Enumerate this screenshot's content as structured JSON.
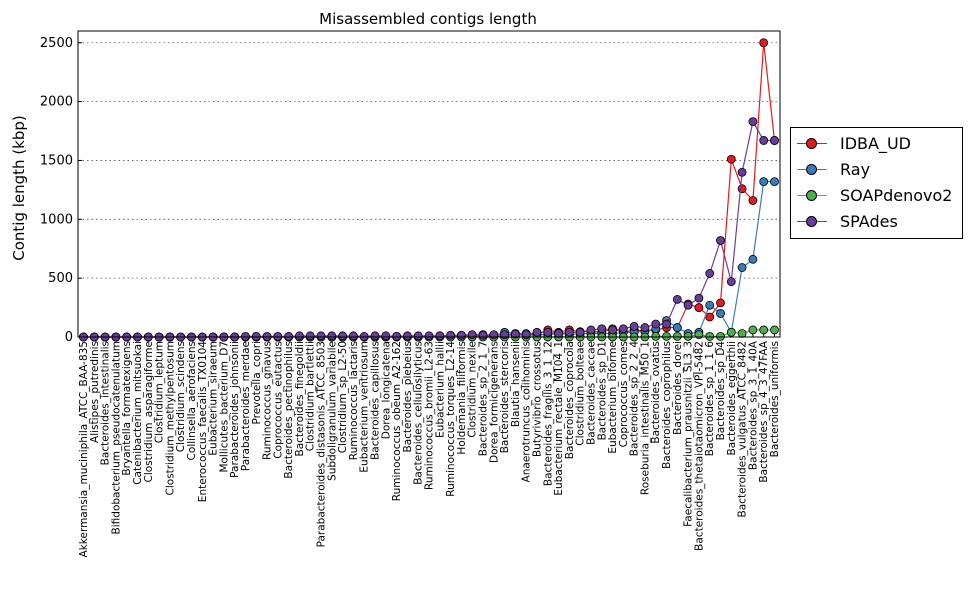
{
  "chart_data": {
    "type": "line",
    "title": "Misassembled contigs length",
    "xlabel": "",
    "ylabel": "Contig length (kbp)",
    "ylim": [
      0,
      2600
    ],
    "yticks": [
      0,
      500,
      1000,
      1500,
      2000,
      2500
    ],
    "grid": "horizontal dotted",
    "legend_position": "outside right",
    "categories": [
      "Akkermansia_muciniphila_ATCC_BAA-835",
      "Alistipes_putredinis",
      "Bacteroides_intestinalis",
      "Bifidobacterium_pseudocatenulatum",
      "Bryantella_formatexigens",
      "Catenibacterium_mitsuokai",
      "Clostridium_asparagiforme",
      "Clostridium_leptum",
      "Clostridium_methylpentosum",
      "Clostridium_scindens",
      "Collinsella_aerofaciens",
      "Enterococcus_faecalis_TX0104",
      "Eubacterium_siraeum",
      "Mollicutes_bacterium_D7",
      "Parabacteroides_johnsonii",
      "Parabacteroides_merdae",
      "Prevotella_copri",
      "Ruminococcus_gnavus",
      "Coprococcus_eutactus",
      "Bacteroides_pectinophilus",
      "Bacteroides_finegoldii",
      "Clostridium_bartlettii",
      "Parabacteroides_distasonis_ATCC_8503",
      "Subdoligranulum_variabile",
      "Clostridium_sp_L2-50",
      "Ruminococcus_lactaris",
      "Eubacterium_ventriosum",
      "Bacteroides_capillosus",
      "Dorea_longicatena",
      "Ruminococcus_obeum_A2-162",
      "Bacteroides_plebeius",
      "Bacteroides_cellulosilyticus",
      "Ruminococcus_bromii_L2-63",
      "Eubacterium_hallii",
      "Ruminococcus_torques_L2-14",
      "Holdemania_filiformis",
      "Clostridium_nexile",
      "Bacteroides_sp_2_1_7",
      "Dorea_formicigenerans",
      "Bacteroides_stercoris",
      "Blautia_hansenii",
      "Anaerotruncus_colihominis",
      "Butyrivibrio_crossotus",
      "Bacteroides_fragilis_3_1_12",
      "Eubacterium_rectale_M104_1",
      "Bacteroides_coprocola",
      "Clostridium_bolteae",
      "Bacteroides_caccae",
      "Bacteroides_sp_D1",
      "Eubacterium_biforme",
      "Coprococcus_comes",
      "Bacteroides_sp_2_2_4",
      "Roseburia_intestinalis_M50_1",
      "Bacteroides_ovatus",
      "Bacteroides_coprophilus",
      "Bacteroides_dorei",
      "Faecalibacterium_prausnitzii_SL3_3",
      "Bacteroides_thetaiotaomicron_VPI-5482",
      "Bacteroides_sp_1_1_6",
      "Bacteroides_sp_D4",
      "Bacteroides_eggerthii",
      "Bacteroides_vulgatus_ATCC_8482",
      "Bacteroides_sp_3_1_40A",
      "Bacteroides_sp_4_3_47FAA",
      "Bacteroides_uniformis"
    ],
    "tick_labels": [
      "Akkermansia_muciniphila_ATCC_BAA-835",
      "Alistipes_putredinis",
      "Bacteroides_intestinalis",
      "Bifidobacterium_pseudocatenulatum",
      "Bryantella_formatexigens",
      "Catenibacterium_mitsuokai",
      "Clostridium_asparagiforme",
      "Clostridium_leptum",
      "Clostridium_methylpentosum",
      "Clostridium_scindens",
      "Collinsella_aerofaciens",
      "Enterococcus_faecalis_TX0104",
      "Eubacterium_siraeum",
      "Mollicutes_bacterium_D7",
      "Parabacteroides_johnsonii",
      "Parabacteroides_merdae",
      "Prevotella_copri",
      "Ruminococcus_gnavus",
      "Coprococcus_eutactus",
      "Bacteroides_pectinophilus",
      "Bacteroides_finegoldii",
      "Clostridium_bartlettii",
      "Parabacteroides_distasonis_ATCC_8503",
      "Subdoligranulum_variabile",
      "Clostridium_sp_L2-50",
      "Ruminococcus_lactaris",
      "Eubacterium_ventriosum",
      "Bacteroides_capillosus",
      "Dorea_longicatena",
      "Ruminococcus_obeum_A2-162",
      "Bacteroides_plebeius",
      "Bacteroides_cellulosilyticus",
      "Ruminococcus_bromii_L2-63",
      "Eubacterium_hallii",
      "Ruminococcus_torques_L2-14",
      "Holdemania_filiformis",
      "Clostridium_nexile",
      "Bacteroides_sp_2_1_7",
      "Dorea_formicigenerans",
      "Bacteroides_stercoris",
      "Blautia_hansenii",
      "Anaerotruncus_colihominis",
      "Butyrivibrio_crossotus",
      "Bacteroides_fragilis_3_1_12",
      "Eubacterium_rectale_M104_1",
      "Bacteroides_coprocola",
      "Clostridium_bolteae",
      "Bacteroides_caccae",
      "Bacteroides_sp_D1",
      "Eubacterium_biforme",
      "Coprococcus_comes",
      "Bacteroides_sp_2_2_4",
      "Roseburia_intestinalis_M50_1",
      "Bacteroides_ovatus",
      "Bacteroides_coprophilus",
      "Bacteroides_dorei",
      "Faecalibacterium_prausnitzii_SL3_3",
      "Bacteroides_thetaiotaomicron_VPI-5482",
      "Bacteroides_sp_1_1_6",
      "Bacteroides_sp_D4",
      "Bacteroides_eggerthii",
      "Bacteroides_vulgatus_ATCC_8482",
      "Bacteroides_sp_3_1_40A",
      "Bacteroides_sp_4_3_47FAA",
      "Bacteroides_uniformis"
    ],
    "series": [
      {
        "name": "IDBA_UD",
        "color": "#e41a1c",
        "values": [
          0,
          0,
          0,
          0,
          0,
          0,
          0,
          0,
          0,
          0,
          0,
          0,
          0,
          0,
          0,
          0,
          0,
          0,
          0,
          0,
          0,
          0,
          0,
          0,
          0,
          0,
          0,
          0,
          0,
          5,
          0,
          0,
          5,
          5,
          5,
          10,
          10,
          10,
          5,
          10,
          20,
          15,
          20,
          60,
          40,
          60,
          45,
          50,
          40,
          70,
          40,
          60,
          50,
          60,
          80,
          80,
          280,
          250,
          170,
          290,
          1510,
          1260,
          1160,
          2500,
          1670
        ]
      },
      {
        "name": "Ray",
        "color": "#377eb8",
        "values": [
          0,
          0,
          0,
          0,
          0,
          0,
          0,
          0,
          0,
          0,
          0,
          0,
          0,
          0,
          0,
          0,
          0,
          0,
          0,
          0,
          0,
          0,
          0,
          0,
          0,
          0,
          0,
          0,
          0,
          0,
          0,
          5,
          5,
          10,
          5,
          15,
          15,
          20,
          10,
          40,
          30,
          30,
          20,
          20,
          30,
          20,
          30,
          30,
          30,
          30,
          40,
          40,
          50,
          70,
          140,
          80,
          30,
          40,
          270,
          200,
          40,
          590,
          660,
          1320,
          1320
        ]
      },
      {
        "name": "SOAPdenovo2",
        "color": "#4daf4a",
        "values": [
          0,
          0,
          0,
          0,
          0,
          0,
          0,
          0,
          0,
          0,
          0,
          0,
          0,
          0,
          0,
          0,
          0,
          0,
          0,
          0,
          0,
          0,
          0,
          0,
          0,
          0,
          0,
          0,
          0,
          0,
          0,
          0,
          0,
          0,
          0,
          0,
          0,
          0,
          0,
          0,
          0,
          0,
          0,
          0,
          0,
          0,
          0,
          0,
          0,
          0,
          0,
          0,
          0,
          5,
          5,
          5,
          5,
          20,
          5,
          5,
          40,
          30,
          60,
          60,
          60
        ]
      },
      {
        "name": "SPAdes",
        "color": "#6a3d9a",
        "values": [
          0,
          0,
          0,
          0,
          0,
          0,
          0,
          0,
          0,
          0,
          0,
          0,
          0,
          0,
          0,
          5,
          5,
          5,
          5,
          5,
          10,
          10,
          10,
          10,
          10,
          10,
          5,
          10,
          10,
          5,
          10,
          10,
          10,
          10,
          15,
          15,
          20,
          15,
          20,
          20,
          25,
          20,
          40,
          40,
          30,
          40,
          40,
          60,
          70,
          60,
          70,
          90,
          80,
          110,
          110,
          320,
          270,
          330,
          540,
          820,
          470,
          1400,
          1830,
          1670,
          1670
        ]
      }
    ]
  }
}
